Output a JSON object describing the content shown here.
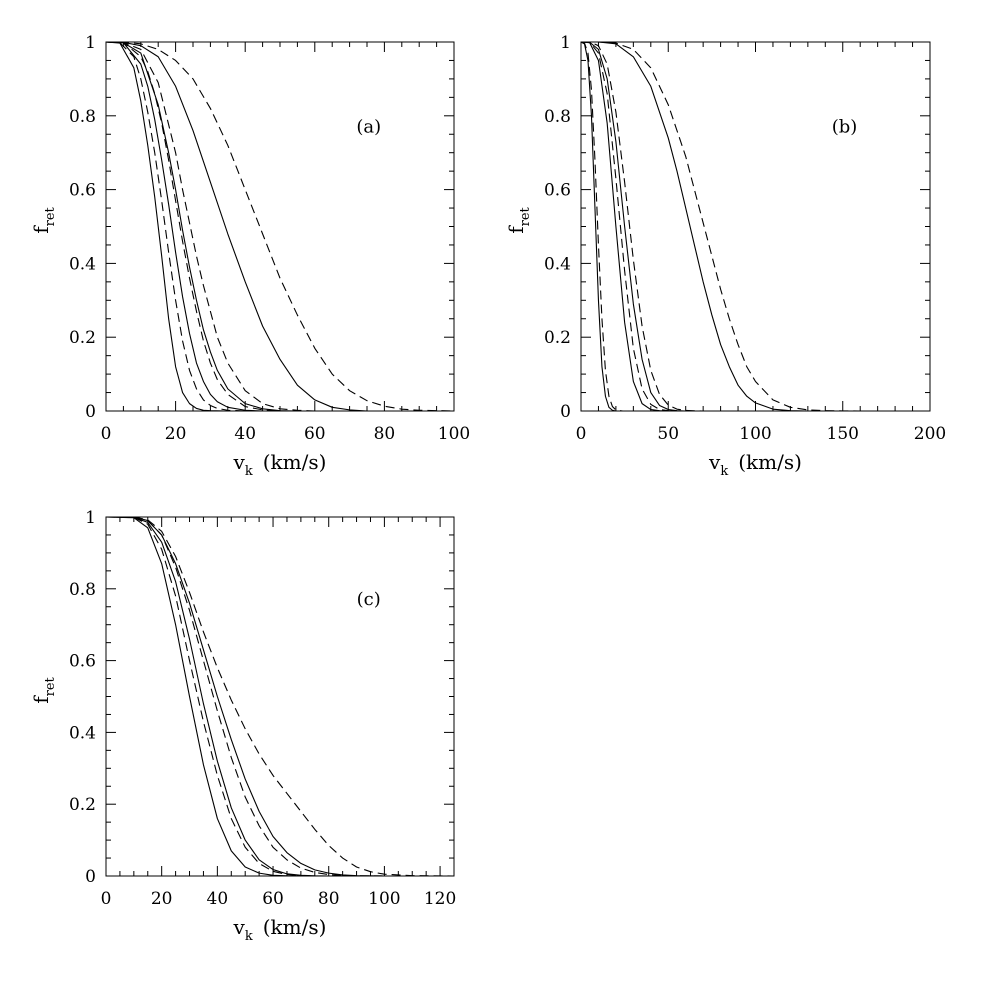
{
  "chart_data": [
    {
      "type": "line",
      "panel_label": "(a)",
      "xlabel": {
        "main": "v",
        "sub": "k",
        "unit": "(km/s)"
      },
      "ylabel": {
        "main": "f",
        "sub": "ret"
      },
      "xlim": [
        0,
        100
      ],
      "ylim": [
        0,
        1
      ],
      "xticks": [
        0,
        20,
        40,
        60,
        80,
        100
      ],
      "yticks": [
        0,
        0.2,
        0.4,
        0.6,
        0.8,
        1
      ],
      "x_minor_step": 5,
      "y_minor_step": 0.05,
      "grid": false,
      "series": [
        {
          "style": "solid",
          "x": [
            0,
            4,
            8,
            10,
            12,
            14,
            16,
            18,
            20,
            22,
            24,
            26,
            28,
            30,
            35
          ],
          "y": [
            1,
            0.997,
            0.93,
            0.84,
            0.72,
            0.58,
            0.42,
            0.25,
            0.12,
            0.05,
            0.02,
            0.007,
            0.002,
            0.001,
            0
          ]
        },
        {
          "style": "dashed",
          "x": [
            0,
            4,
            8,
            10,
            12,
            14,
            16,
            18,
            20,
            22,
            24,
            26,
            28,
            30,
            32,
            35,
            40
          ],
          "y": [
            1,
            0.998,
            0.96,
            0.9,
            0.81,
            0.7,
            0.57,
            0.43,
            0.3,
            0.19,
            0.11,
            0.06,
            0.03,
            0.015,
            0.007,
            0.002,
            0
          ]
        },
        {
          "style": "solid",
          "x": [
            0,
            5,
            10,
            12,
            14,
            16,
            18,
            20,
            22,
            24,
            26,
            28,
            30,
            32,
            35,
            40,
            45
          ],
          "y": [
            1,
            0.998,
            0.94,
            0.88,
            0.79,
            0.68,
            0.56,
            0.43,
            0.31,
            0.21,
            0.13,
            0.08,
            0.045,
            0.025,
            0.01,
            0.002,
            0
          ]
        },
        {
          "style": "dashed",
          "x": [
            0,
            5,
            10,
            12,
            14,
            16,
            18,
            20,
            22,
            24,
            26,
            28,
            30,
            32,
            35,
            40,
            45,
            50
          ],
          "y": [
            1,
            0.999,
            0.96,
            0.92,
            0.86,
            0.78,
            0.68,
            0.57,
            0.46,
            0.36,
            0.27,
            0.19,
            0.13,
            0.085,
            0.045,
            0.012,
            0.003,
            0
          ]
        },
        {
          "style": "solid",
          "x": [
            0,
            5,
            10,
            15,
            18,
            20,
            22,
            24,
            26,
            28,
            30,
            32,
            35,
            40,
            45,
            50,
            55
          ],
          "y": [
            1,
            0.998,
            0.97,
            0.83,
            0.7,
            0.6,
            0.49,
            0.39,
            0.3,
            0.22,
            0.16,
            0.11,
            0.06,
            0.02,
            0.006,
            0.001,
            0
          ]
        },
        {
          "style": "dashed",
          "x": [
            0,
            5,
            10,
            15,
            20,
            22,
            24,
            26,
            28,
            30,
            32,
            35,
            40,
            45,
            50,
            55,
            60
          ],
          "y": [
            1,
            0.999,
            0.98,
            0.89,
            0.7,
            0.6,
            0.51,
            0.42,
            0.34,
            0.27,
            0.2,
            0.13,
            0.055,
            0.02,
            0.006,
            0.002,
            0
          ]
        },
        {
          "style": "solid",
          "x": [
            0,
            5,
            10,
            15,
            20,
            25,
            30,
            35,
            40,
            45,
            50,
            55,
            60,
            65,
            70,
            75
          ],
          "y": [
            1,
            0.999,
            0.99,
            0.96,
            0.88,
            0.76,
            0.62,
            0.48,
            0.35,
            0.23,
            0.14,
            0.07,
            0.03,
            0.01,
            0.003,
            0
          ]
        },
        {
          "style": "dashed",
          "x": [
            0,
            5,
            10,
            15,
            20,
            25,
            30,
            35,
            40,
            45,
            50,
            55,
            60,
            65,
            70,
            75,
            80,
            85,
            90,
            95,
            100
          ],
          "y": [
            1,
            1,
            0.995,
            0.98,
            0.95,
            0.9,
            0.82,
            0.72,
            0.6,
            0.48,
            0.36,
            0.26,
            0.17,
            0.1,
            0.055,
            0.028,
            0.013,
            0.005,
            0.002,
            0.001,
            0
          ]
        }
      ]
    },
    {
      "type": "line",
      "panel_label": "(b)",
      "xlabel": {
        "main": "v",
        "sub": "k",
        "unit": "(km/s)"
      },
      "ylabel": {
        "main": "f",
        "sub": "ret"
      },
      "xlim": [
        0,
        200
      ],
      "ylim": [
        0,
        1
      ],
      "xticks": [
        0,
        50,
        100,
        150,
        200
      ],
      "yticks": [
        0,
        0.2,
        0.4,
        0.6,
        0.8,
        1
      ],
      "x_minor_step": 10,
      "y_minor_step": 0.05,
      "grid": false,
      "series": [
        {
          "style": "solid",
          "x": [
            0,
            2,
            4,
            6,
            8,
            10,
            12,
            14,
            16,
            18,
            20
          ],
          "y": [
            1,
            0.995,
            0.95,
            0.8,
            0.55,
            0.3,
            0.12,
            0.04,
            0.01,
            0.002,
            0
          ]
        },
        {
          "style": "dashed",
          "x": [
            0,
            2,
            4,
            6,
            8,
            10,
            12,
            14,
            16,
            18,
            20,
            22,
            24
          ],
          "y": [
            1,
            0.997,
            0.97,
            0.87,
            0.68,
            0.45,
            0.25,
            0.11,
            0.04,
            0.012,
            0.003,
            0.001,
            0
          ]
        },
        {
          "style": "solid",
          "x": [
            0,
            5,
            10,
            15,
            20,
            25,
            30,
            35,
            40,
            45,
            50
          ],
          "y": [
            1,
            0.998,
            0.95,
            0.78,
            0.5,
            0.24,
            0.08,
            0.02,
            0.004,
            0.001,
            0
          ]
        },
        {
          "style": "dashed",
          "x": [
            0,
            5,
            10,
            15,
            20,
            25,
            30,
            35,
            40,
            45,
            50,
            55
          ],
          "y": [
            1,
            0.999,
            0.97,
            0.86,
            0.63,
            0.38,
            0.17,
            0.06,
            0.018,
            0.004,
            0.001,
            0
          ]
        },
        {
          "style": "solid",
          "x": [
            0,
            5,
            10,
            15,
            20,
            25,
            30,
            35,
            40,
            45,
            50,
            55,
            60
          ],
          "y": [
            1,
            0.999,
            0.98,
            0.9,
            0.73,
            0.5,
            0.29,
            0.14,
            0.05,
            0.015,
            0.004,
            0.001,
            0
          ]
        },
        {
          "style": "dashed",
          "x": [
            0,
            5,
            10,
            15,
            20,
            25,
            30,
            35,
            40,
            45,
            50,
            55,
            60,
            65,
            70
          ],
          "y": [
            1,
            1,
            0.99,
            0.94,
            0.81,
            0.62,
            0.41,
            0.23,
            0.11,
            0.045,
            0.016,
            0.005,
            0.0015,
            0.0005,
            0
          ]
        },
        {
          "style": "solid",
          "x": [
            0,
            10,
            20,
            30,
            40,
            50,
            55,
            60,
            65,
            70,
            75,
            80,
            85,
            90,
            95,
            100,
            110,
            120,
            130
          ],
          "y": [
            1,
            1,
            0.995,
            0.96,
            0.88,
            0.74,
            0.65,
            0.55,
            0.45,
            0.35,
            0.26,
            0.18,
            0.12,
            0.07,
            0.04,
            0.022,
            0.005,
            0.001,
            0
          ]
        },
        {
          "style": "dashed",
          "x": [
            0,
            10,
            20,
            30,
            40,
            50,
            60,
            65,
            70,
            75,
            80,
            85,
            90,
            95,
            100,
            110,
            120,
            130,
            140,
            150,
            160,
            175,
            200
          ],
          "y": [
            1,
            1,
            0.997,
            0.98,
            0.93,
            0.83,
            0.69,
            0.6,
            0.51,
            0.42,
            0.33,
            0.25,
            0.18,
            0.12,
            0.08,
            0.03,
            0.01,
            0.003,
            0.001,
            0.0003,
            0,
            0,
            0
          ]
        }
      ]
    },
    {
      "type": "line",
      "panel_label": "(c)",
      "xlabel": {
        "main": "v",
        "sub": "k",
        "unit": "(km/s)"
      },
      "ylabel": {
        "main": "f",
        "sub": "ret"
      },
      "xlim": [
        0,
        125
      ],
      "ylim": [
        0,
        1
      ],
      "xticks": [
        0,
        20,
        40,
        60,
        80,
        100,
        120
      ],
      "yticks": [
        0,
        0.2,
        0.4,
        0.6,
        0.8,
        1
      ],
      "x_minor_step": 5,
      "y_minor_step": 0.05,
      "grid": false,
      "series": [
        {
          "style": "solid",
          "x": [
            0,
            10,
            15,
            20,
            25,
            30,
            35,
            40,
            45,
            50,
            55,
            60,
            65,
            70
          ],
          "y": [
            1,
            0.998,
            0.97,
            0.87,
            0.7,
            0.5,
            0.31,
            0.16,
            0.07,
            0.025,
            0.008,
            0.002,
            0.0005,
            0
          ]
        },
        {
          "style": "dashed",
          "x": [
            0,
            10,
            15,
            20,
            25,
            30,
            35,
            40,
            45,
            50,
            55,
            60,
            65,
            70,
            75
          ],
          "y": [
            1,
            0.999,
            0.98,
            0.91,
            0.78,
            0.6,
            0.43,
            0.28,
            0.16,
            0.08,
            0.035,
            0.013,
            0.004,
            0.001,
            0
          ]
        },
        {
          "style": "solid",
          "x": [
            0,
            10,
            15,
            20,
            25,
            30,
            35,
            40,
            45,
            50,
            55,
            60,
            65,
            70,
            75,
            80
          ],
          "y": [
            1,
            0.999,
            0.985,
            0.93,
            0.82,
            0.66,
            0.48,
            0.32,
            0.19,
            0.1,
            0.045,
            0.018,
            0.006,
            0.002,
            0.0005,
            0
          ]
        },
        {
          "style": "dashed",
          "x": [
            0,
            10,
            15,
            20,
            25,
            30,
            35,
            40,
            45,
            50,
            55,
            60,
            65,
            70,
            75,
            80,
            85,
            90,
            100
          ],
          "y": [
            1,
            1,
            0.99,
            0.95,
            0.86,
            0.74,
            0.6,
            0.46,
            0.33,
            0.22,
            0.14,
            0.08,
            0.045,
            0.022,
            0.01,
            0.004,
            0.0015,
            0.0005,
            0
          ]
        },
        {
          "style": "solid",
          "x": [
            0,
            10,
            15,
            20,
            25,
            30,
            35,
            40,
            45,
            50,
            55,
            60,
            65,
            70,
            75,
            80,
            85,
            90,
            100
          ],
          "y": [
            1,
            1,
            0.99,
            0.95,
            0.87,
            0.76,
            0.63,
            0.5,
            0.38,
            0.27,
            0.18,
            0.11,
            0.065,
            0.035,
            0.017,
            0.008,
            0.003,
            0.001,
            0
          ]
        },
        {
          "style": "dashed",
          "x": [
            0,
            10,
            15,
            20,
            25,
            30,
            35,
            40,
            45,
            50,
            55,
            60,
            65,
            70,
            75,
            80,
            85,
            90,
            95,
            100,
            110,
            125
          ],
          "y": [
            1,
            1,
            0.992,
            0.96,
            0.89,
            0.79,
            0.68,
            0.58,
            0.49,
            0.41,
            0.34,
            0.28,
            0.23,
            0.18,
            0.13,
            0.085,
            0.05,
            0.025,
            0.012,
            0.005,
            0.001,
            0
          ]
        }
      ]
    }
  ]
}
